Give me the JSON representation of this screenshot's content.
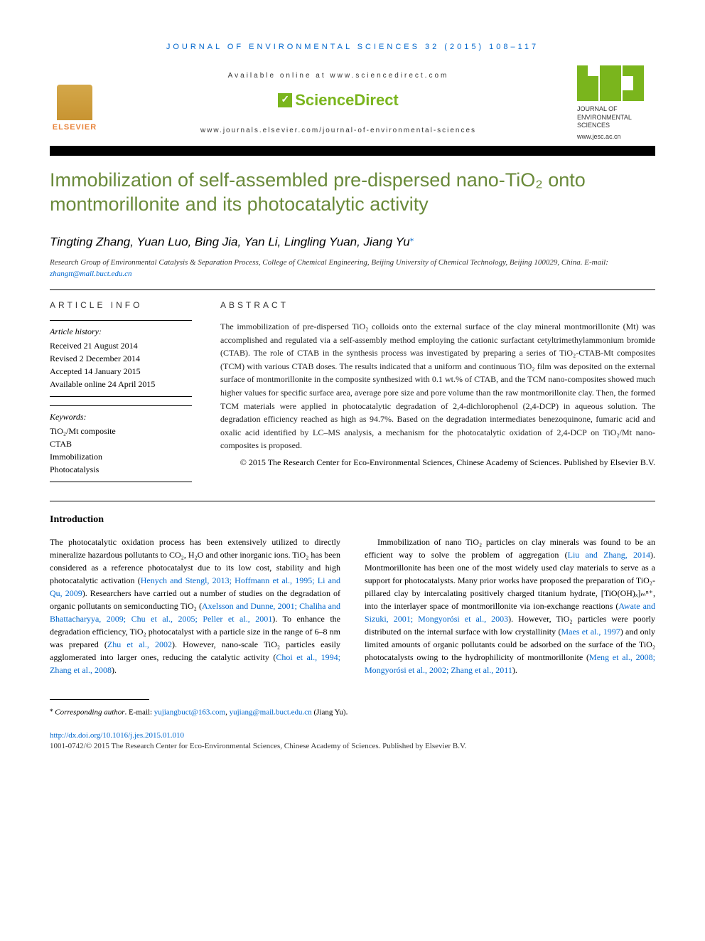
{
  "header": {
    "journal_line": "JOURNAL OF ENVIRONMENTAL SCIENCES 32 (2015) 108–117",
    "available": "Available online at www.sciencedirect.com",
    "sciencedirect": "ScienceDirect",
    "journal_url": "www.journals.elsevier.com/journal-of-environmental-sciences",
    "elsevier": "ELSEVIER",
    "jes_title": "JOURNAL OF ENVIRONMENTAL SCIENCES",
    "jes_url": "www.jesc.ac.cn"
  },
  "title": "Immobilization of self-assembled pre-dispersed nano-TiO₂ onto montmorillonite and its photocatalytic activity",
  "authors": "Tingting Zhang, Yuan Luo, Bing Jia, Yan Li, Lingling Yuan, Jiang Yu",
  "affiliation": "Research Group of Environmental Catalysis & Separation Process, College of Chemical Engineering, Beijing University of Chemical Technology, Beijing 100029, China. E-mail: ",
  "affiliation_email": "zhangtt@mail.buct.edu.cn",
  "article_info": {
    "label": "ARTICLE INFO",
    "history_label": "Article history:",
    "received": "Received 21 August 2014",
    "revised": "Revised 2 December 2014",
    "accepted": "Accepted 14 January 2015",
    "online": "Available online 24 April 2015",
    "keywords_label": "Keywords:",
    "keywords": [
      "TiO₂/Mt composite",
      "CTAB",
      "Immobilization",
      "Photocatalysis"
    ]
  },
  "abstract": {
    "label": "ABSTRACT",
    "text": "The immobilization of pre-dispersed TiO₂ colloids onto the external surface of the clay mineral montmorillonite (Mt) was accomplished and regulated via a self-assembly method employing the cationic surfactant cetyltrimethylammonium bromide (CTAB). The role of CTAB in the synthesis process was investigated by preparing a series of TiO₂-CTAB-Mt composites (TCM) with various CTAB doses. The results indicated that a uniform and continuous TiO₂ film was deposited on the external surface of montmorillonite in the composite synthesized with 0.1 wt.% of CTAB, and the TCM nano-composites showed much higher values for specific surface area, average pore size and pore volume than the raw montmorillonite clay. Then, the formed TCM materials were applied in photocatalytic degradation of 2,4-dichlorophenol (2,4-DCP) in aqueous solution. The degradation efficiency reached as high as 94.7%. Based on the degradation intermediates benezoquinone, fumaric acid and oxalic acid identified by LC–MS analysis, a mechanism for the photocatalytic oxidation of 2,4-DCP on TiO₂/Mt nano-composites is proposed.",
    "copyright": "© 2015 The Research Center for Eco-Environmental Sciences, Chinese Academy of Sciences. Published by Elsevier B.V."
  },
  "intro": {
    "heading": "Introduction",
    "col1_p1a": "The photocatalytic oxidation process has been extensively utilized to directly mineralize hazardous pollutants to CO₂, H₂O and other inorganic ions. TiO₂ has been considered as a reference photocatalyst due to its low cost, stability and high photocatalytic activation (",
    "col1_ref1": "Henych and Stengl, 2013; Hoffmann et al., 1995; Li and Qu, 2009",
    "col1_p1b": "). Researchers have carried out a number of studies on the degradation of organic pollutants on semiconducting TiO₂ (",
    "col1_ref2": "Axelsson and Dunne, 2001; Chaliha and Bhattacharyya, 2009; Chu et al., 2005; Peller et al., 2001",
    "col1_p1c": "). To enhance the degradation efficiency, TiO₂ photocatalyst with a particle size in the range of 6–8 nm was prepared (",
    "col1_ref3": "Zhu et al., 2002",
    "col1_p1d": "). However, nano-scale TiO₂ particles easily agglomerated into larger ones, reducing the catalytic activity (",
    "col1_ref4": "Choi et al., 1994; Zhang et al., 2008",
    "col1_p1e": ").",
    "col2_p1a": "Immobilization of nano TiO₂ particles on clay minerals was found to be an efficient way to solve the problem of aggregation (",
    "col2_ref1": "Liu and Zhang, 2014",
    "col2_p1b": "). Montmorillonite has been one of the most widely used clay materials to serve as a support for photocatalysts. Many prior works have proposed the preparation of TiO₂-pillared clay by intercalating positively charged titanium hydrate, [TiO(OH)ₓ]ₘⁿ⁺, into the interlayer space of montmorillonite via ion-exchange reactions (",
    "col2_ref2": "Awate and Sizuki, 2001; Mongyorósi et al., 2003",
    "col2_p1c": "). However, TiO₂ particles were poorly distributed on the internal surface with low crystallinity (",
    "col2_ref3": "Maes et al., 1997",
    "col2_p1d": ") and only limited amounts of organic pollutants could be adsorbed on the surface of the TiO₂ photocatalysts owing to the hydrophilicity of montmorillonite (",
    "col2_ref4": "Meng et al., 2008; Mongyorósi et al., 2002; Zhang et al., 2011",
    "col2_p1e": ")."
  },
  "footnote": {
    "corresponding": "Corresponding author",
    "email_label": ". E-mail: ",
    "email1": "yujiangbuct@163.com",
    "email2": "yujiang@mail.buct.edu.cn",
    "name": " (Jiang Yu)."
  },
  "doi": "http://dx.doi.org/10.1016/j.jes.2015.01.010",
  "bottom": "1001-0742/© 2015 The Research Center for Eco-Environmental Sciences, Chinese Academy of Sciences. Published by Elsevier B.V.",
  "colors": {
    "link": "#0066cc",
    "title": "#6a8a3a",
    "green": "#7ab51d",
    "elsevier": "#e8833a"
  }
}
